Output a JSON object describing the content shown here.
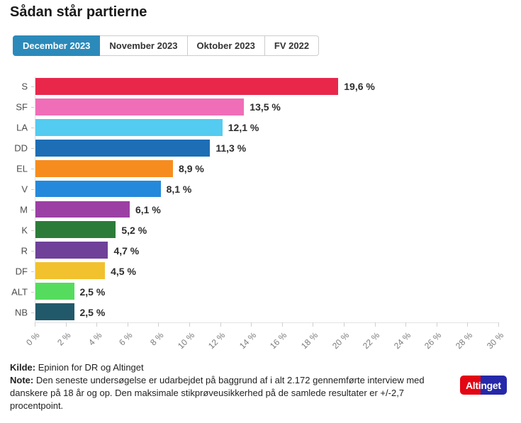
{
  "page": {
    "title": "Sådan står partierne"
  },
  "tabs": [
    {
      "label": "December 2023",
      "active": true
    },
    {
      "label": "November 2023",
      "active": false
    },
    {
      "label": "Oktober 2023",
      "active": false
    },
    {
      "label": "FV 2022",
      "active": false
    }
  ],
  "chart_data": {
    "type": "bar",
    "orientation": "horizontal",
    "title": "Sådan står partierne",
    "categories": [
      "S",
      "SF",
      "LA",
      "DD",
      "EL",
      "V",
      "M",
      "K",
      "R",
      "DF",
      "ALT",
      "NB"
    ],
    "values": [
      19.6,
      13.5,
      12.1,
      11.3,
      8.9,
      8.1,
      6.1,
      5.2,
      4.7,
      4.5,
      2.5,
      2.5
    ],
    "value_labels": [
      "19,6 %",
      "13,5 %",
      "12,1 %",
      "11,3 %",
      "8,9 %",
      "8,1 %",
      "6,1 %",
      "5,2 %",
      "4,7 %",
      "4,5 %",
      "2,5 %",
      "2,5 %"
    ],
    "bar_colors": [
      "#E8274B",
      "#F06EB7",
      "#54CBF0",
      "#1D6EB5",
      "#F78C1E",
      "#2489DB",
      "#9C3FA5",
      "#2C7C39",
      "#6F4199",
      "#F2C12E",
      "#55DC5E",
      "#21596B"
    ],
    "xlim": [
      0,
      30
    ],
    "x_ticks": [
      "0 %",
      "2 %",
      "4 %",
      "6 %",
      "8 %",
      "10 %",
      "12 %",
      "14 %",
      "16 %",
      "18 %",
      "20 %",
      "22 %",
      "24 %",
      "26 %",
      "28 %",
      "30 %"
    ],
    "tick_rotation": -45,
    "grid": false,
    "legend": "none"
  },
  "footer": {
    "kilde_label": "Kilde:",
    "kilde_text": "Epinion for DR og Altinget",
    "note_label": "Note:",
    "note_text": "Den seneste undersøgelse er udarbejdet på baggrund af i alt 2.172 gennemførte interview med danskere på 18 år og op. Den maksimale stikprøveusikkerhed på de samlede resultater er +/-2,7 procentpoint."
  },
  "logo": {
    "text_left": "Alti",
    "text_right": "nget",
    "red": "#E30613",
    "blue": "#2528A9"
  },
  "colors": {
    "active_tab_bg": "#2B8ABA",
    "active_tab_text": "#FFFFFF",
    "axis_line": "#E2E2E2",
    "tick_label": "#7A7A7A"
  }
}
